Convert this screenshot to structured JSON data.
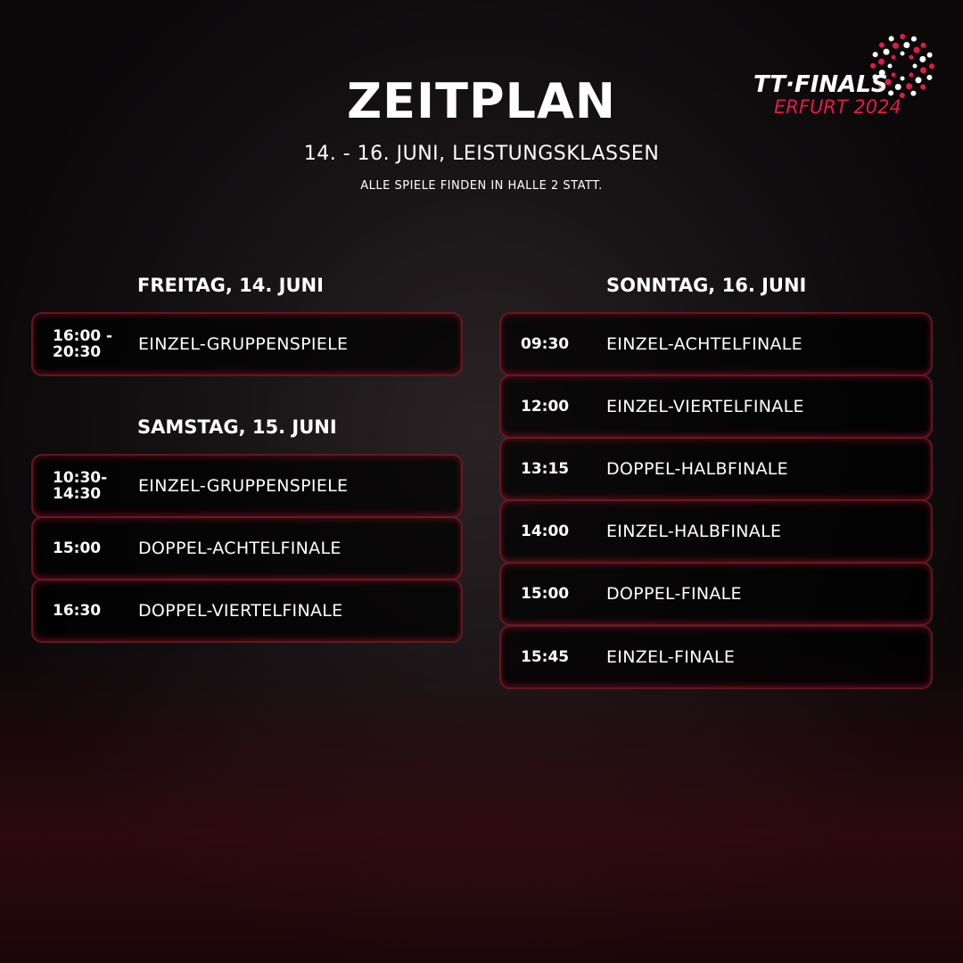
{
  "header": {
    "title": "ZEITPLAN",
    "subtitle": "14. - 16. JUNI, LEISTUNGSKLASSEN",
    "note": "ALLE SPIELE FINDEN IN HALLE 2 STATT."
  },
  "logo": {
    "line1": "TT·FINALS",
    "line2": "ERFURT 2024",
    "accent": "#e3194b"
  },
  "days": [
    {
      "label": "FREITAG, 14. JUNI",
      "items": [
        {
          "time": "16:00 - 20:30",
          "event": "EINZEL-GRUPPENSPIELE"
        }
      ]
    },
    {
      "label": "SAMSTAG, 15. JUNI",
      "items": [
        {
          "time": "10:30-14:30",
          "event": "EINZEL-GRUPPENSPIELE"
        },
        {
          "time": "15:00",
          "event": "DOPPEL-ACHTELFINALE"
        },
        {
          "time": "16:30",
          "event": "DOPPEL-VIERTELFINALE"
        }
      ]
    },
    {
      "label": "SONNTAG, 16. JUNI",
      "items": [
        {
          "time": "09:30",
          "event": "EINZEL-ACHTELFINALE"
        },
        {
          "time": "12:00",
          "event": "EINZEL-VIERTELFINALE"
        },
        {
          "time": "13:15",
          "event": "DOPPEL-HALBFINALE"
        },
        {
          "time": "14:00",
          "event": "EINZEL-HALBFINALE"
        },
        {
          "time": "15:00",
          "event": "DOPPEL-FINALE"
        },
        {
          "time": "15:45",
          "event": "EINZEL-FINALE"
        }
      ]
    }
  ]
}
